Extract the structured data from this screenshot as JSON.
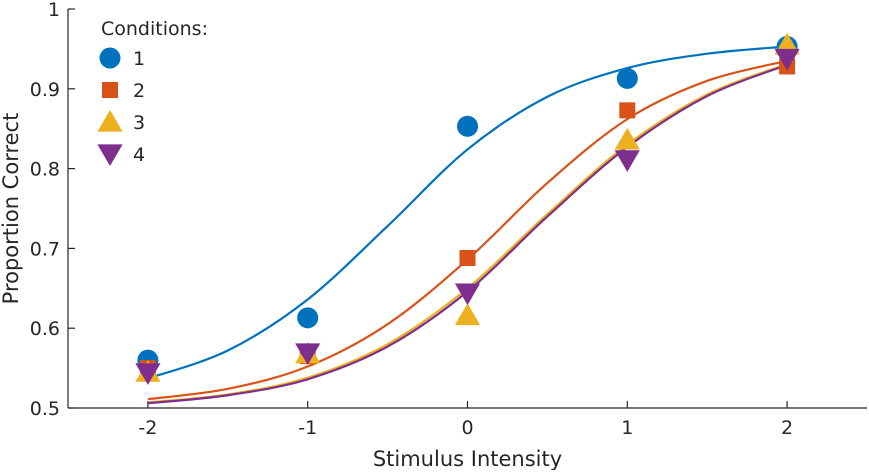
{
  "chart_data": {
    "type": "scatter",
    "xlabel": "Stimulus Intensity",
    "ylabel": "Proportion Correct",
    "xlim": [
      -2.5,
      2.5
    ],
    "ylim": [
      0.5,
      1.0
    ],
    "xticks": [
      -2,
      -1,
      0,
      1,
      2
    ],
    "xtick_labels": [
      "-2",
      "-1",
      "0",
      "1",
      "2"
    ],
    "yticks": [
      0.5,
      0.6,
      0.7,
      0.8,
      0.9,
      1.0
    ],
    "ytick_labels": [
      "0.5",
      "0.6",
      "0.7",
      "0.8",
      "0.9",
      "1"
    ],
    "grid": false,
    "legend": {
      "title": "Conditions:",
      "position": "top-left"
    },
    "series": [
      {
        "name": "1",
        "color": "#0072BD",
        "marker": "circle",
        "x": [
          -2,
          -1,
          0,
          1,
          2
        ],
        "y": [
          0.56,
          0.613,
          0.853,
          0.913,
          0.953
        ],
        "curve": [
          [
            -2.0,
            0.537
          ],
          [
            -1.5,
            0.572
          ],
          [
            -1.0,
            0.636
          ],
          [
            -0.5,
            0.728
          ],
          [
            0.0,
            0.824
          ],
          [
            0.5,
            0.89
          ],
          [
            1.0,
            0.926
          ],
          [
            1.5,
            0.944
          ],
          [
            2.0,
            0.953
          ]
        ]
      },
      {
        "name": "2",
        "color": "#D95319",
        "marker": "square",
        "x": [
          -2,
          -1,
          0,
          1,
          2
        ],
        "y": [
          0.55,
          0.565,
          0.688,
          0.873,
          0.928
        ],
        "curve": [
          [
            -2.0,
            0.511
          ],
          [
            -1.5,
            0.524
          ],
          [
            -1.0,
            0.552
          ],
          [
            -0.5,
            0.605
          ],
          [
            0.0,
            0.686
          ],
          [
            0.5,
            0.782
          ],
          [
            1.0,
            0.862
          ],
          [
            1.5,
            0.91
          ],
          [
            2.0,
            0.935
          ]
        ]
      },
      {
        "name": "3",
        "color": "#EDB120",
        "marker": "triangle-up",
        "x": [
          -2,
          -1,
          0,
          1,
          2
        ],
        "y": [
          0.545,
          0.568,
          0.616,
          0.836,
          0.955
        ],
        "curve": [
          [
            -2.0,
            0.507
          ],
          [
            -1.5,
            0.517
          ],
          [
            -1.0,
            0.538
          ],
          [
            -0.5,
            0.58
          ],
          [
            0.0,
            0.65
          ],
          [
            0.5,
            0.743
          ],
          [
            1.0,
            0.83
          ],
          [
            1.5,
            0.893
          ],
          [
            2.0,
            0.931
          ]
        ]
      },
      {
        "name": "4",
        "color": "#7E2F8E",
        "marker": "triangle-down",
        "x": [
          -2,
          -1,
          0,
          1,
          2
        ],
        "y": [
          0.544,
          0.569,
          0.644,
          0.811,
          0.938
        ],
        "curve": [
          [
            -2.0,
            0.506
          ],
          [
            -1.5,
            0.516
          ],
          [
            -1.0,
            0.536
          ],
          [
            -0.5,
            0.577
          ],
          [
            0.0,
            0.646
          ],
          [
            0.5,
            0.74
          ],
          [
            1.0,
            0.827
          ],
          [
            1.5,
            0.891
          ],
          [
            2.0,
            0.93
          ]
        ]
      }
    ]
  }
}
